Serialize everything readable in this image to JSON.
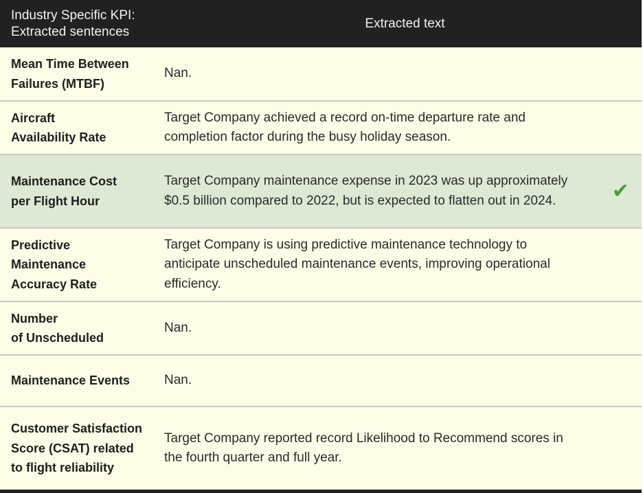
{
  "header": {
    "kpi_label_line1": "Industry Specific KPI:",
    "kpi_label_line2": "Extracted sentences",
    "text_label": "Extracted text"
  },
  "rows": [
    {
      "kpi_lines": [
        "Mean Time Between",
        "Failures (MTBF)"
      ],
      "text": "Nan."
    },
    {
      "kpi_lines": [
        "Aircraft",
        "Availability Rate"
      ],
      "text": "Target Company achieved a record on-time departure rate and completion factor during the busy holiday season."
    },
    {
      "kpi_lines": [
        "Maintenance Cost",
        "per Flight Hour"
      ],
      "text": "Target Company maintenance expense in 2023 was up approximately $0.5 billion compared to 2022, but is expected to flatten out in 2024.",
      "selected": true,
      "mark": "✔"
    },
    {
      "kpi_lines": [
        "Predictive",
        "Maintenance",
        "Accuracy Rate"
      ],
      "text": "Target Company is using predictive maintenance technology to anticipate unscheduled maintenance events, improving operational efficiency."
    },
    {
      "kpi_lines": [
        "Number",
        "of Unscheduled"
      ],
      "text": "Nan."
    },
    {
      "kpi_lines": [
        "Maintenance Events"
      ],
      "text": "Nan."
    },
    {
      "kpi_lines": [
        "Customer Satisfaction",
        "Score (CSAT) related",
        "to flight reliability"
      ],
      "text": "Target Company reported record Likelihood to Recommend scores in the fourth quarter and full year."
    }
  ],
  "colors": {
    "header_bg": "#212121",
    "row_bg": "#fdfde8",
    "selected_row_bg": "#dde9d4",
    "check_color": "#4a9b3e"
  },
  "icons": {
    "selected_mark": "check-mark-icon"
  }
}
